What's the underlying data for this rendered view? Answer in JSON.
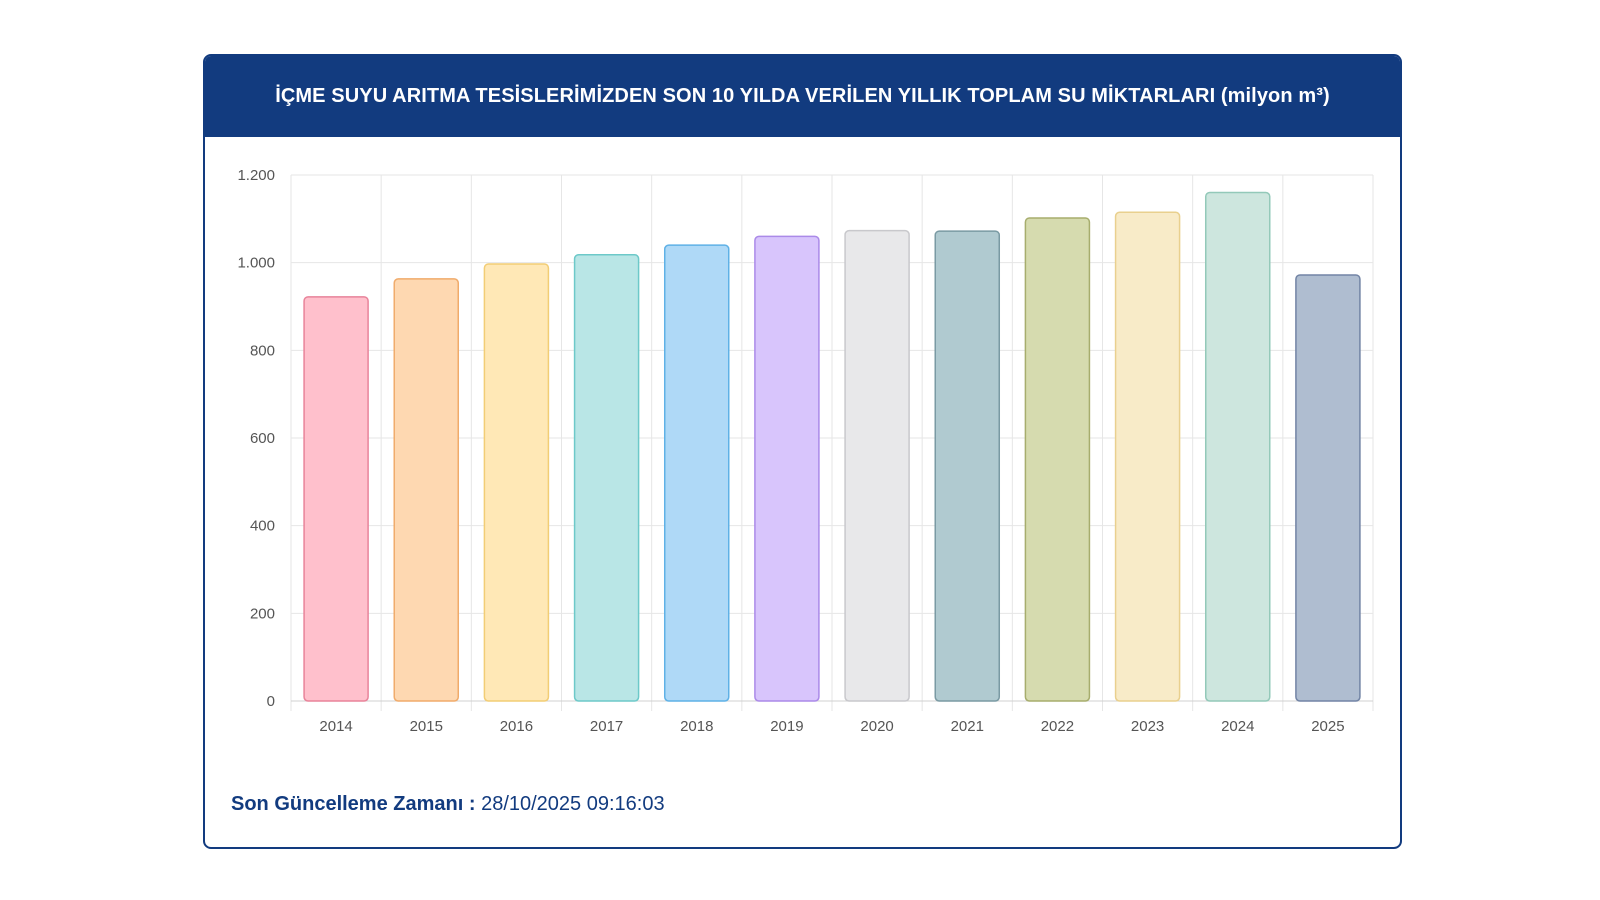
{
  "chart_data": {
    "type": "bar",
    "title": "İÇME SUYU ARITMA TESİSLERİMİZDEN SON 10 YILDA VERİLEN YILLIK TOPLAM SU MİKTARLARI (milyon m³)",
    "categories": [
      "2014",
      "2015",
      "2016",
      "2017",
      "2018",
      "2019",
      "2020",
      "2021",
      "2022",
      "2023",
      "2024",
      "2025"
    ],
    "values": [
      922,
      963,
      997,
      1018,
      1040,
      1060,
      1073,
      1072,
      1102,
      1115,
      1160,
      972
    ],
    "ylim": [
      0,
      1200
    ],
    "yticks": [
      0,
      200,
      400,
      600,
      800,
      1000,
      1200
    ],
    "ytick_labels": [
      "0",
      "200",
      "400",
      "600",
      "800",
      "1.000",
      "1.200"
    ],
    "grid": true,
    "colors": [
      {
        "fill": "#ffc0cc",
        "stroke": "#e8839a"
      },
      {
        "fill": "#fed8b1",
        "stroke": "#f0ab6b"
      },
      {
        "fill": "#ffe8b6",
        "stroke": "#f2cd75"
      },
      {
        "fill": "#b9e6e6",
        "stroke": "#6dc9c9"
      },
      {
        "fill": "#afd9f7",
        "stroke": "#5fb1e6"
      },
      {
        "fill": "#d8c5fc",
        "stroke": "#ab8ae8"
      },
      {
        "fill": "#e8e8ea",
        "stroke": "#c8c8cc"
      },
      {
        "fill": "#b0cad0",
        "stroke": "#7a9aa3"
      },
      {
        "fill": "#d6dbaf",
        "stroke": "#a7ad6d"
      },
      {
        "fill": "#f8ebc8",
        "stroke": "#e9d08e"
      },
      {
        "fill": "#cde6de",
        "stroke": "#93c9b9"
      },
      {
        "fill": "#afbdd0",
        "stroke": "#7284a5"
      }
    ]
  },
  "footer": {
    "label": "Son Güncelleme Zamanı :",
    "timestamp": "28/10/2025 09:16:03"
  }
}
